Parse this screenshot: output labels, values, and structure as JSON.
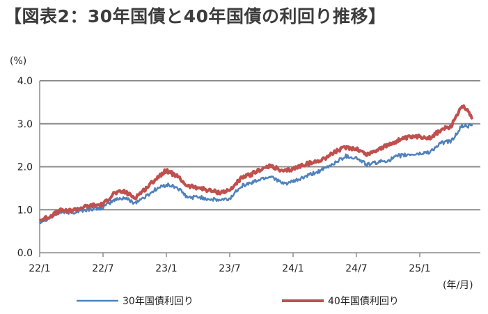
{
  "title": "【図表2：30年国債と40年国債の利回り推移】",
  "chart_data": {
    "type": "line",
    "title": "【図表2：30年国債と40年国債の利回り推移】",
    "ylabel": "(%)",
    "xlabel": "(年/月)",
    "ylim": [
      0.0,
      4.0
    ],
    "yticks": [
      "0.0",
      "1.0",
      "2.0",
      "3.0",
      "4.0"
    ],
    "xticks": [
      "22/1",
      "22/7",
      "23/1",
      "23/7",
      "24/1",
      "24/7",
      "25/1"
    ],
    "grid": true,
    "legend": "bottom",
    "series": [
      {
        "name": "30年国債利回り",
        "color": "#4f81bd",
        "points": [
          [
            "22/1",
            0.72
          ],
          [
            "22/2",
            0.82
          ],
          [
            "22/3",
            0.95
          ],
          [
            "22/4",
            0.93
          ],
          [
            "22/5",
            0.98
          ],
          [
            "22/6",
            1.02
          ],
          [
            "22/7",
            1.05
          ],
          [
            "22/8",
            1.22
          ],
          [
            "22/9",
            1.28
          ],
          [
            "22/10",
            1.16
          ],
          [
            "22/11",
            1.3
          ],
          [
            "22/12",
            1.48
          ],
          [
            "23/1",
            1.58
          ],
          [
            "23/2",
            1.52
          ],
          [
            "23/3",
            1.28
          ],
          [
            "23/4",
            1.3
          ],
          [
            "23/5",
            1.25
          ],
          [
            "23/6",
            1.22
          ],
          [
            "23/7",
            1.25
          ],
          [
            "23/8",
            1.55
          ],
          [
            "23/9",
            1.62
          ],
          [
            "23/10",
            1.72
          ],
          [
            "23/11",
            1.78
          ],
          [
            "23/12",
            1.6
          ],
          [
            "24/1",
            1.65
          ],
          [
            "24/2",
            1.75
          ],
          [
            "24/3",
            1.85
          ],
          [
            "24/4",
            1.95
          ],
          [
            "24/5",
            2.1
          ],
          [
            "24/6",
            2.25
          ],
          [
            "24/7",
            2.2
          ],
          [
            "24/8",
            2.05
          ],
          [
            "24/9",
            2.1
          ],
          [
            "24/10",
            2.15
          ],
          [
            "24/11",
            2.25
          ],
          [
            "24/12",
            2.28
          ],
          [
            "25/1",
            2.3
          ],
          [
            "25/2",
            2.35
          ],
          [
            "25/3",
            2.55
          ],
          [
            "25/4",
            2.6
          ],
          [
            "25/5",
            2.95
          ],
          [
            "25/6",
            2.95
          ]
        ]
      },
      {
        "name": "40年国債利回り",
        "color": "#c0504d",
        "points": [
          [
            "22/1",
            0.75
          ],
          [
            "22/2",
            0.85
          ],
          [
            "22/3",
            0.98
          ],
          [
            "22/4",
            0.98
          ],
          [
            "22/5",
            1.05
          ],
          [
            "22/6",
            1.1
          ],
          [
            "22/7",
            1.12
          ],
          [
            "22/8",
            1.38
          ],
          [
            "22/9",
            1.42
          ],
          [
            "22/10",
            1.28
          ],
          [
            "22/11",
            1.48
          ],
          [
            "22/12",
            1.72
          ],
          [
            "23/1",
            1.92
          ],
          [
            "23/2",
            1.78
          ],
          [
            "23/3",
            1.55
          ],
          [
            "23/4",
            1.52
          ],
          [
            "23/5",
            1.45
          ],
          [
            "23/6",
            1.4
          ],
          [
            "23/7",
            1.45
          ],
          [
            "23/8",
            1.72
          ],
          [
            "23/9",
            1.82
          ],
          [
            "23/10",
            1.95
          ],
          [
            "23/11",
            2.02
          ],
          [
            "23/12",
            1.88
          ],
          [
            "24/1",
            1.95
          ],
          [
            "24/2",
            2.05
          ],
          [
            "24/3",
            2.1
          ],
          [
            "24/4",
            2.2
          ],
          [
            "24/5",
            2.35
          ],
          [
            "24/6",
            2.45
          ],
          [
            "24/7",
            2.42
          ],
          [
            "24/8",
            2.28
          ],
          [
            "24/9",
            2.4
          ],
          [
            "24/10",
            2.5
          ],
          [
            "24/11",
            2.62
          ],
          [
            "24/12",
            2.68
          ],
          [
            "25/1",
            2.7
          ],
          [
            "25/2",
            2.68
          ],
          [
            "25/3",
            2.85
          ],
          [
            "25/4",
            2.95
          ],
          [
            "25/5",
            3.45
          ],
          [
            "25/6",
            3.15
          ]
        ]
      }
    ]
  }
}
